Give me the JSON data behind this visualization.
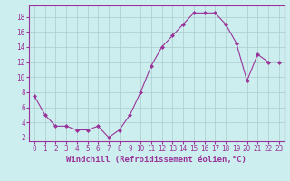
{
  "x": [
    0,
    1,
    2,
    3,
    4,
    5,
    6,
    7,
    8,
    9,
    10,
    11,
    12,
    13,
    14,
    15,
    16,
    17,
    18,
    19,
    20,
    21,
    22,
    23
  ],
  "y": [
    7.5,
    5.0,
    3.5,
    3.5,
    3.0,
    3.0,
    3.5,
    2.0,
    3.0,
    5.0,
    8.0,
    11.5,
    14.0,
    15.5,
    17.0,
    18.5,
    18.5,
    18.5,
    17.0,
    14.5,
    9.5,
    13.0,
    12.0,
    12.0
  ],
  "color": "#993399",
  "bg_color": "#cceeee",
  "grid_color": "#aacccc",
  "xlabel": "Windchill (Refroidissement éolien,°C)",
  "xlim": [
    -0.5,
    23.5
  ],
  "ylim": [
    1.5,
    19.5
  ],
  "yticks": [
    2,
    4,
    6,
    8,
    10,
    12,
    14,
    16,
    18
  ],
  "xticks": [
    0,
    1,
    2,
    3,
    4,
    5,
    6,
    7,
    8,
    9,
    10,
    11,
    12,
    13,
    14,
    15,
    16,
    17,
    18,
    19,
    20,
    21,
    22,
    23
  ],
  "xtick_labels": [
    "0",
    "1",
    "2",
    "3",
    "4",
    "5",
    "6",
    "7",
    "8",
    "9",
    "10",
    "11",
    "12",
    "13",
    "14",
    "15",
    "16",
    "17",
    "18",
    "19",
    "20",
    "21",
    "22",
    "23"
  ],
  "xlabel_fontsize": 6.5,
  "tick_fontsize": 5.5,
  "marker": "D",
  "marker_size": 2.0,
  "line_width": 0.8
}
